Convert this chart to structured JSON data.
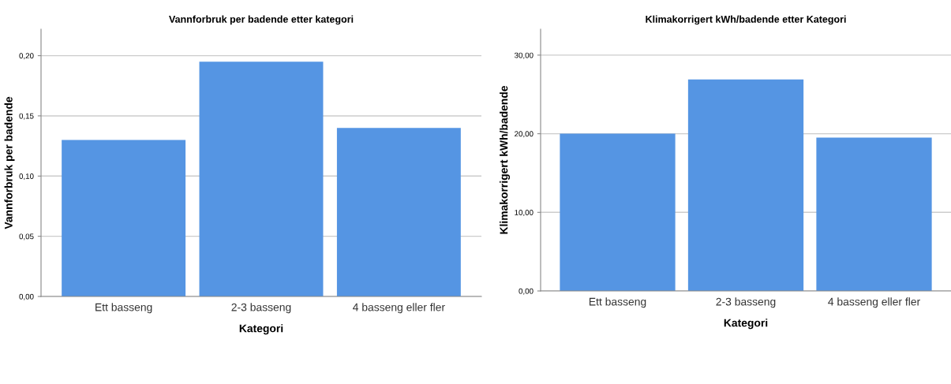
{
  "chart_data": [
    {
      "type": "bar",
      "title": "Vannforbruk per badende etter kategori",
      "xlabel": "Kategori",
      "ylabel": "Vannforbruk per badende",
      "categories": [
        "Ett basseng",
        "2-3 basseng",
        "4 basseng eller fler"
      ],
      "values": [
        0.13,
        0.195,
        0.14
      ],
      "color": "#5595e3",
      "ylim": [
        0,
        0.222
      ],
      "yticks": [
        {
          "value": 0,
          "label": "0,00"
        },
        {
          "value": 0.05,
          "label": "0,05"
        },
        {
          "value": 0.1,
          "label": "0,10"
        },
        {
          "value": 0.15,
          "label": "0,15"
        },
        {
          "value": 0.2,
          "label": "0,20"
        }
      ],
      "grid": "y"
    },
    {
      "type": "bar",
      "title": "Klimakorrigert kWh/badende etter Kategori",
      "xlabel": "Kategori",
      "ylabel": "Klimakorrigert kWh/badende",
      "categories": [
        "Ett basseng",
        "2-3 basseng",
        "4 basseng eller fler"
      ],
      "values": [
        20.0,
        26.9,
        19.5
      ],
      "color": "#5595e3",
      "ylim": [
        0,
        33.3
      ],
      "yticks": [
        {
          "value": 0,
          "label": "0,00"
        },
        {
          "value": 10,
          "label": "10,00"
        },
        {
          "value": 20,
          "label": "20,00"
        },
        {
          "value": 30,
          "label": "30,00"
        }
      ],
      "grid": "y"
    }
  ]
}
